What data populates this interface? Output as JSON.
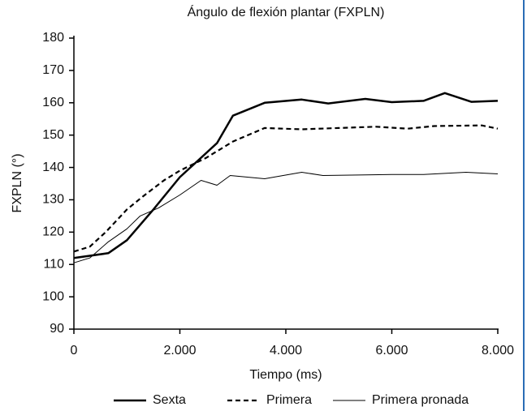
{
  "chart_data": {
    "type": "line",
    "title": "Ángulo de flexión plantar (FXPLN)",
    "xlabel": "Tiempo (ms)",
    "ylabel": "FXPLN (°)",
    "xlim": [
      0,
      8000
    ],
    "xticks": [
      0,
      {
        "value": 2000,
        "label": "2.000"
      },
      {
        "value": 4000,
        "label": "4.000"
      },
      {
        "value": 6000,
        "label": "6.000"
      },
      {
        "value": 8000,
        "label": "8.000"
      }
    ],
    "ylim": [
      90,
      180
    ],
    "yticks": [
      90,
      100,
      110,
      120,
      130,
      140,
      150,
      160,
      170,
      180
    ],
    "legend": "bottom",
    "series": [
      {
        "name": "Sexta",
        "color": "#000000",
        "line_style": "solid",
        "line_width": 2.5,
        "x": [
          0,
          650,
          1000,
          1500,
          2000,
          2700,
          3000,
          3600,
          4300,
          4800,
          5500,
          6000,
          6600,
          7000,
          7500,
          8000
        ],
        "values": [
          112,
          113.5,
          117.5,
          127,
          137,
          147.5,
          156,
          160,
          161,
          159.8,
          161.2,
          160.2,
          160.6,
          163,
          160.3,
          160.6
        ]
      },
      {
        "name": "Primera",
        "color": "#000000",
        "line_style": "dashed",
        "line_width": 2.2,
        "x": [
          0,
          300,
          600,
          1000,
          1300,
          1700,
          2000,
          2500,
          3000,
          3600,
          4300,
          5000,
          5700,
          6300,
          6800,
          7700,
          8000
        ],
        "values": [
          114,
          115.5,
          120,
          127,
          131,
          136,
          139,
          143,
          148,
          152.2,
          151.8,
          152.2,
          152.6,
          152,
          152.8,
          153,
          152
        ]
      },
      {
        "name": "Primera pronada",
        "color": "#000000",
        "line_style": "solid",
        "line_width": 1,
        "x": [
          0,
          300,
          650,
          1000,
          1250,
          1600,
          2000,
          2400,
          2700,
          2950,
          3600,
          4300,
          4700,
          5500,
          6000,
          6600,
          7400,
          8000
        ],
        "values": [
          110.5,
          112,
          117,
          121,
          125,
          127.5,
          131.5,
          136,
          134.5,
          137.5,
          136.5,
          138.5,
          137.5,
          137.7,
          137.8,
          137.8,
          138.5,
          138
        ]
      }
    ]
  }
}
